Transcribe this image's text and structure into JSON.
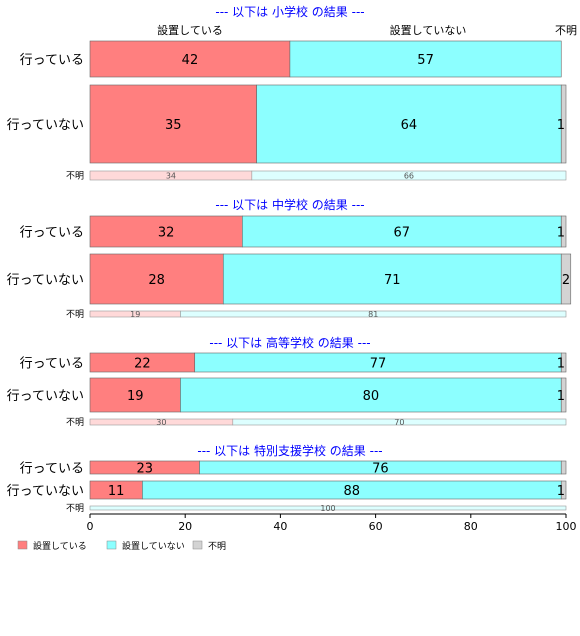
{
  "chart_data": {
    "type": "bar",
    "orientation": "horizontal",
    "stacked": true,
    "xlim": [
      0,
      100
    ],
    "xticks": [
      0,
      20,
      40,
      60,
      80,
      100
    ],
    "legend_position": "bottom-left",
    "series": [
      {
        "name": "設置している",
        "color": "#FF7F7F"
      },
      {
        "name": "設置していない",
        "color": "#8CFFFF"
      },
      {
        "name": "不明",
        "color": "#D3D3D3"
      }
    ],
    "column_headers": [
      "設置している",
      "設置していない",
      "不明"
    ],
    "groups": [
      {
        "title": "--- 以下は 小学校 の結果 ---",
        "rows": [
          {
            "label": "行っている",
            "values": [
              42,
              57,
              0
            ],
            "labels": [
              "42",
              "57",
              ""
            ]
          },
          {
            "label": "行っていない",
            "values": [
              35,
              64,
              1
            ],
            "labels": [
              "35",
              "64",
              "1"
            ]
          },
          {
            "label": "不明",
            "values": [
              34,
              66,
              0
            ],
            "labels": [
              "34",
              "66",
              ""
            ],
            "faded": true
          }
        ]
      },
      {
        "title": "--- 以下は 中学校 の結果 ---",
        "rows": [
          {
            "label": "行っている",
            "values": [
              32,
              67,
              1
            ],
            "labels": [
              "32",
              "67",
              "1"
            ]
          },
          {
            "label": "行っていない",
            "values": [
              28,
              71,
              2
            ],
            "labels": [
              "28",
              "71",
              "2"
            ]
          },
          {
            "label": "不明",
            "values": [
              19,
              81,
              0
            ],
            "labels": [
              "19",
              "81",
              ""
            ],
            "faded": true
          }
        ]
      },
      {
        "title": "--- 以下は 高等学校 の結果 ---",
        "rows": [
          {
            "label": "行っている",
            "values": [
              22,
              77,
              1
            ],
            "labels": [
              "22",
              "77",
              "1"
            ]
          },
          {
            "label": "行っていない",
            "values": [
              19,
              80,
              1
            ],
            "labels": [
              "19",
              "80",
              "1"
            ]
          },
          {
            "label": "不明",
            "values": [
              30,
              70,
              0
            ],
            "labels": [
              "30",
              "70",
              ""
            ],
            "faded": true
          }
        ]
      },
      {
        "title": "--- 以下は 特別支援学校 の結果 ---",
        "rows": [
          {
            "label": "行っている",
            "values": [
              23,
              76,
              1
            ],
            "labels": [
              "23",
              "76",
              ""
            ]
          },
          {
            "label": "行っていない",
            "values": [
              11,
              88,
              1
            ],
            "labels": [
              "11",
              "88",
              "1"
            ]
          },
          {
            "label": "不明",
            "values": [
              0,
              100,
              0
            ],
            "labels": [
              "",
              "100",
              ""
            ],
            "faded": true
          }
        ]
      }
    ]
  }
}
